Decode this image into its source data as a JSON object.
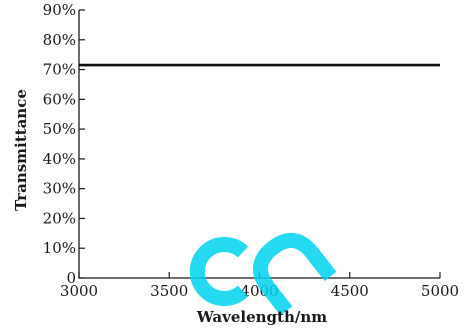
{
  "chart_data": {
    "type": "line",
    "xlabel": "Wavelength/nm",
    "ylabel": "Transmittance",
    "xlim": [
      3000,
      5000
    ],
    "ylim": [
      0,
      90
    ],
    "x_ticks": [
      3000,
      3500,
      4000,
      4500,
      5000
    ],
    "x_tick_labels": [
      "3000",
      "3500",
      "4000",
      "4500",
      "5000"
    ],
    "y_ticks": [
      0,
      10,
      20,
      30,
      40,
      50,
      60,
      70,
      80,
      90
    ],
    "y_tick_labels": [
      "0",
      "10%",
      "20%",
      "30%",
      "40%",
      "50%",
      "60%",
      "70%",
      "80%",
      "90%"
    ],
    "grid": false,
    "series": [
      {
        "color": "#111111",
        "x": [
          3000,
          5000
        ],
        "y": [
          71.5,
          71.5
        ]
      }
    ]
  },
  "watermark": {
    "text": "cn",
    "color": "#00d4ee"
  }
}
